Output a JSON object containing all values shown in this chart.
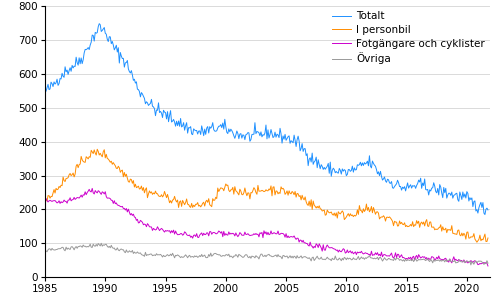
{
  "series": {
    "Totalt": {
      "color": "#1E90FF"
    },
    "I personbil": {
      "color": "#FF8C00"
    },
    "Fotgängare och cyklister": {
      "color": "#CC00CC"
    },
    "Övriga": {
      "color": "#999999"
    }
  },
  "ylim": [
    0,
    800
  ],
  "yticks": [
    0,
    100,
    200,
    300,
    400,
    500,
    600,
    700,
    800
  ],
  "xlim_start": 1985.0,
  "xlim_end": 2021.92,
  "xticks": [
    1985,
    1990,
    1995,
    2000,
    2005,
    2010,
    2015,
    2020
  ],
  "linewidth": 0.7,
  "background_color": "#FFFFFF",
  "grid_color": "#CCCCCC",
  "legend_fontsize": 7.5,
  "tick_fontsize": 7.5
}
